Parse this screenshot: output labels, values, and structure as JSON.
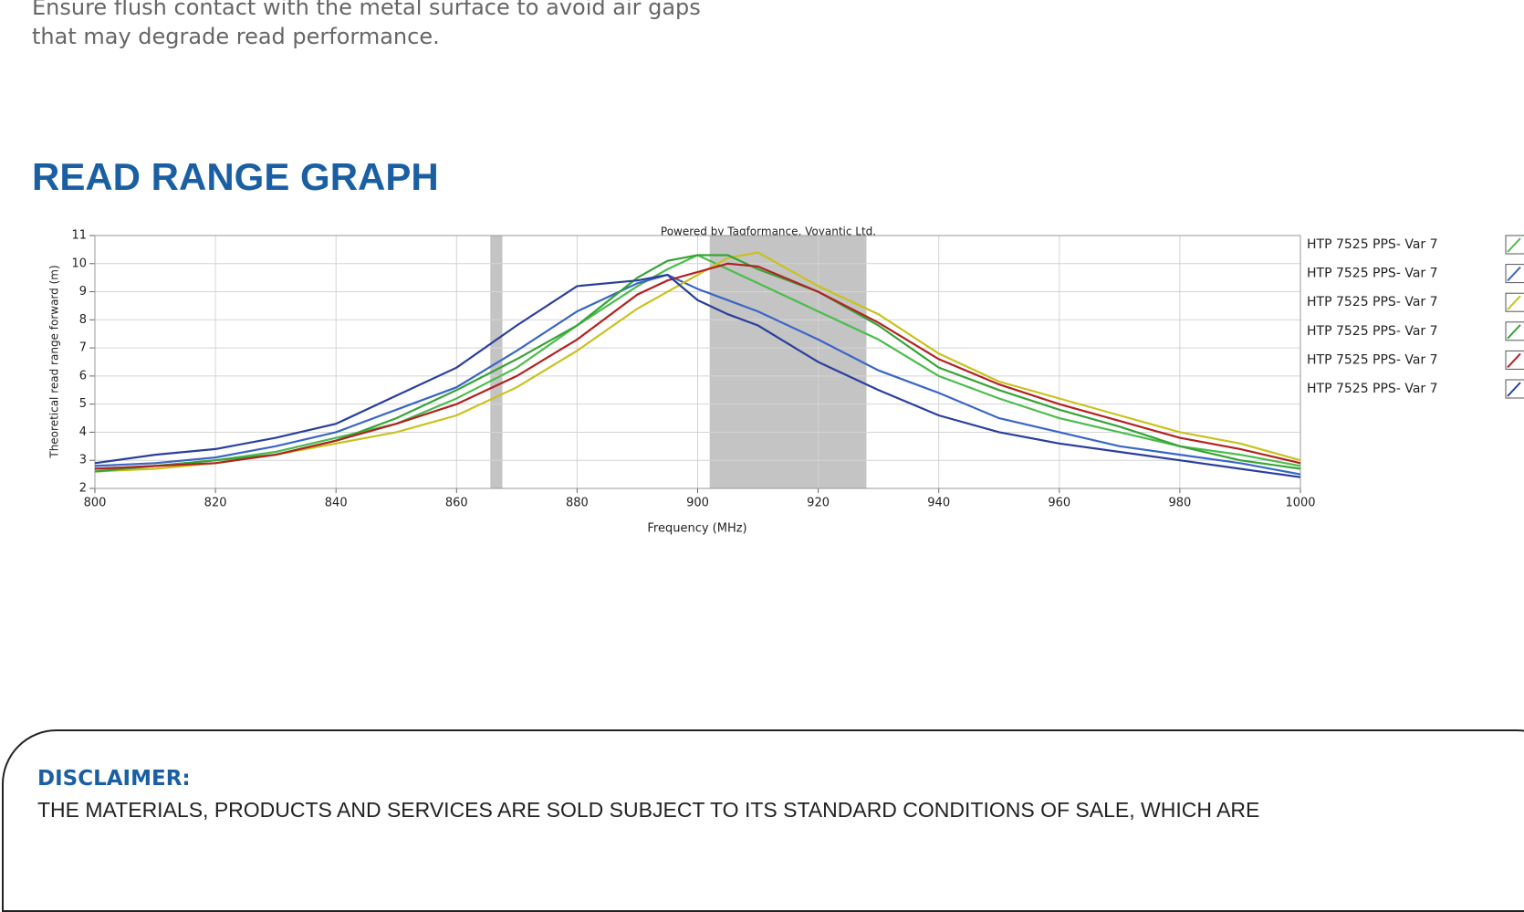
{
  "intro": {
    "lines": [
      "Ensure flush contact with the metal surface to avoid air gaps",
      "that may degrade read performance."
    ]
  },
  "section_title": "READ RANGE GRAPH",
  "chart_data": {
    "type": "line",
    "title": "Powered by Tagformance, Voyantic Ltd.",
    "x_label": "Frequency (MHz)",
    "y_label": "Theoretical read range forward (m)",
    "x": [
      800,
      810,
      820,
      830,
      840,
      850,
      860,
      870,
      880,
      890,
      895,
      900,
      905,
      910,
      920,
      930,
      940,
      950,
      960,
      970,
      980,
      990,
      1000
    ],
    "xlim": [
      800,
      1000
    ],
    "xticks": [
      800,
      820,
      840,
      860,
      880,
      900,
      920,
      940,
      960,
      980,
      1000
    ],
    "ylim": [
      2,
      11
    ],
    "yticks": [
      2,
      3,
      4,
      5,
      6,
      7,
      8,
      9,
      10,
      11
    ],
    "grid": true,
    "legend": "right",
    "bands": [
      {
        "from": 865.6,
        "to": 867.6
      },
      {
        "from": 902,
        "to": 928
      }
    ],
    "band_color": "#c4c4c4",
    "series": [
      {
        "name": "HTP 7525 PPS- Var 7",
        "color": "#4cbc4c",
        "values": [
          2.7,
          2.8,
          3.0,
          3.3,
          3.8,
          4.3,
          5.2,
          6.3,
          7.8,
          9.2,
          9.8,
          10.3,
          9.8,
          9.3,
          8.3,
          7.3,
          6.0,
          5.2,
          4.5,
          4.0,
          3.5,
          3.2,
          2.8
        ]
      },
      {
        "name": "HTP 7525 PPS- Var 7",
        "color": "#3a66c4",
        "values": [
          2.8,
          2.9,
          3.1,
          3.5,
          4.0,
          4.8,
          5.6,
          6.9,
          8.3,
          9.3,
          9.6,
          9.1,
          8.7,
          8.3,
          7.3,
          6.2,
          5.4,
          4.5,
          4.0,
          3.5,
          3.2,
          2.9,
          2.5
        ]
      },
      {
        "name": "HTP 7525 PPS- Var 7",
        "color": "#c8c21e",
        "values": [
          2.6,
          2.7,
          2.9,
          3.2,
          3.6,
          4.0,
          4.6,
          5.6,
          6.9,
          8.4,
          9.0,
          9.6,
          10.2,
          10.4,
          9.2,
          8.2,
          6.8,
          5.8,
          5.2,
          4.6,
          4.0,
          3.6,
          3.0
        ]
      },
      {
        "name": "HTP 7525 PPS- Var 7",
        "color": "#36a436",
        "values": [
          2.6,
          2.8,
          3.0,
          3.2,
          3.7,
          4.5,
          5.5,
          6.6,
          7.8,
          9.5,
          10.1,
          10.3,
          10.3,
          9.8,
          9.0,
          7.8,
          6.3,
          5.5,
          4.8,
          4.2,
          3.5,
          3.0,
          2.7
        ]
      },
      {
        "name": "HTP 7525 PPS- Var 7",
        "color": "#b22222",
        "values": [
          2.7,
          2.8,
          2.9,
          3.2,
          3.7,
          4.3,
          5.0,
          6.0,
          7.3,
          8.9,
          9.4,
          9.7,
          10.0,
          9.9,
          9.0,
          7.9,
          6.6,
          5.7,
          5.0,
          4.4,
          3.8,
          3.4,
          2.9
        ]
      },
      {
        "name": "HTP 7525 PPS- Var 7",
        "color": "#2a3f9c",
        "values": [
          2.9,
          3.2,
          3.4,
          3.8,
          4.3,
          5.3,
          6.3,
          7.8,
          9.2,
          9.4,
          9.6,
          8.7,
          8.2,
          7.8,
          6.5,
          5.5,
          4.6,
          4.0,
          3.6,
          3.3,
          3.0,
          2.7,
          2.4
        ]
      }
    ]
  },
  "disclaimer": {
    "heading": "DISCLAIMER:",
    "text": "THE MATERIALS, PRODUCTS AND SERVICES ARE SOLD SUBJECT TO ITS STANDARD CONDITIONS OF SALE, WHICH ARE"
  }
}
